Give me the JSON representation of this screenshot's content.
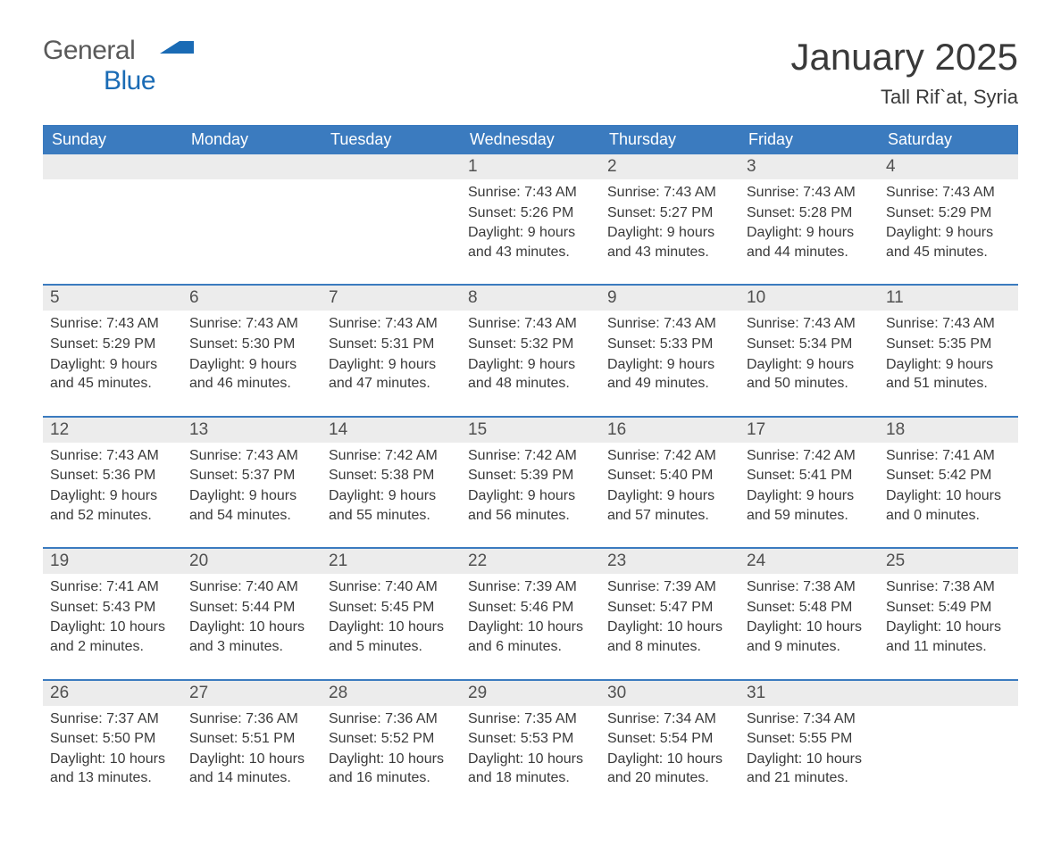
{
  "logo": {
    "word1": "General",
    "word2": "Blue"
  },
  "title": "January 2025",
  "location": "Tall Rif`at, Syria",
  "colors": {
    "header_bg": "#3b7bbf",
    "header_text": "#ffffff",
    "daynum_bg": "#ececec",
    "text": "#3a3a3a",
    "logo_gray": "#5a5a5a",
    "logo_blue": "#1a6bb5",
    "rule": "#3b7bbf"
  },
  "day_headers": [
    "Sunday",
    "Monday",
    "Tuesday",
    "Wednesday",
    "Thursday",
    "Friday",
    "Saturday"
  ],
  "weeks": [
    [
      null,
      null,
      null,
      {
        "n": "1",
        "sunrise": "7:43 AM",
        "sunset": "5:26 PM",
        "daylight": "9 hours and 43 minutes."
      },
      {
        "n": "2",
        "sunrise": "7:43 AM",
        "sunset": "5:27 PM",
        "daylight": "9 hours and 43 minutes."
      },
      {
        "n": "3",
        "sunrise": "7:43 AM",
        "sunset": "5:28 PM",
        "daylight": "9 hours and 44 minutes."
      },
      {
        "n": "4",
        "sunrise": "7:43 AM",
        "sunset": "5:29 PM",
        "daylight": "9 hours and 45 minutes."
      }
    ],
    [
      {
        "n": "5",
        "sunrise": "7:43 AM",
        "sunset": "5:29 PM",
        "daylight": "9 hours and 45 minutes."
      },
      {
        "n": "6",
        "sunrise": "7:43 AM",
        "sunset": "5:30 PM",
        "daylight": "9 hours and 46 minutes."
      },
      {
        "n": "7",
        "sunrise": "7:43 AM",
        "sunset": "5:31 PM",
        "daylight": "9 hours and 47 minutes."
      },
      {
        "n": "8",
        "sunrise": "7:43 AM",
        "sunset": "5:32 PM",
        "daylight": "9 hours and 48 minutes."
      },
      {
        "n": "9",
        "sunrise": "7:43 AM",
        "sunset": "5:33 PM",
        "daylight": "9 hours and 49 minutes."
      },
      {
        "n": "10",
        "sunrise": "7:43 AM",
        "sunset": "5:34 PM",
        "daylight": "9 hours and 50 minutes."
      },
      {
        "n": "11",
        "sunrise": "7:43 AM",
        "sunset": "5:35 PM",
        "daylight": "9 hours and 51 minutes."
      }
    ],
    [
      {
        "n": "12",
        "sunrise": "7:43 AM",
        "sunset": "5:36 PM",
        "daylight": "9 hours and 52 minutes."
      },
      {
        "n": "13",
        "sunrise": "7:43 AM",
        "sunset": "5:37 PM",
        "daylight": "9 hours and 54 minutes."
      },
      {
        "n": "14",
        "sunrise": "7:42 AM",
        "sunset": "5:38 PM",
        "daylight": "9 hours and 55 minutes."
      },
      {
        "n": "15",
        "sunrise": "7:42 AM",
        "sunset": "5:39 PM",
        "daylight": "9 hours and 56 minutes."
      },
      {
        "n": "16",
        "sunrise": "7:42 AM",
        "sunset": "5:40 PM",
        "daylight": "9 hours and 57 minutes."
      },
      {
        "n": "17",
        "sunrise": "7:42 AM",
        "sunset": "5:41 PM",
        "daylight": "9 hours and 59 minutes."
      },
      {
        "n": "18",
        "sunrise": "7:41 AM",
        "sunset": "5:42 PM",
        "daylight": "10 hours and 0 minutes."
      }
    ],
    [
      {
        "n": "19",
        "sunrise": "7:41 AM",
        "sunset": "5:43 PM",
        "daylight": "10 hours and 2 minutes."
      },
      {
        "n": "20",
        "sunrise": "7:40 AM",
        "sunset": "5:44 PM",
        "daylight": "10 hours and 3 minutes."
      },
      {
        "n": "21",
        "sunrise": "7:40 AM",
        "sunset": "5:45 PM",
        "daylight": "10 hours and 5 minutes."
      },
      {
        "n": "22",
        "sunrise": "7:39 AM",
        "sunset": "5:46 PM",
        "daylight": "10 hours and 6 minutes."
      },
      {
        "n": "23",
        "sunrise": "7:39 AM",
        "sunset": "5:47 PM",
        "daylight": "10 hours and 8 minutes."
      },
      {
        "n": "24",
        "sunrise": "7:38 AM",
        "sunset": "5:48 PM",
        "daylight": "10 hours and 9 minutes."
      },
      {
        "n": "25",
        "sunrise": "7:38 AM",
        "sunset": "5:49 PM",
        "daylight": "10 hours and 11 minutes."
      }
    ],
    [
      {
        "n": "26",
        "sunrise": "7:37 AM",
        "sunset": "5:50 PM",
        "daylight": "10 hours and 13 minutes."
      },
      {
        "n": "27",
        "sunrise": "7:36 AM",
        "sunset": "5:51 PM",
        "daylight": "10 hours and 14 minutes."
      },
      {
        "n": "28",
        "sunrise": "7:36 AM",
        "sunset": "5:52 PM",
        "daylight": "10 hours and 16 minutes."
      },
      {
        "n": "29",
        "sunrise": "7:35 AM",
        "sunset": "5:53 PM",
        "daylight": "10 hours and 18 minutes."
      },
      {
        "n": "30",
        "sunrise": "7:34 AM",
        "sunset": "5:54 PM",
        "daylight": "10 hours and 20 minutes."
      },
      {
        "n": "31",
        "sunrise": "7:34 AM",
        "sunset": "5:55 PM",
        "daylight": "10 hours and 21 minutes."
      },
      null
    ]
  ],
  "labels": {
    "sunrise": "Sunrise: ",
    "sunset": "Sunset: ",
    "daylight": "Daylight: "
  }
}
